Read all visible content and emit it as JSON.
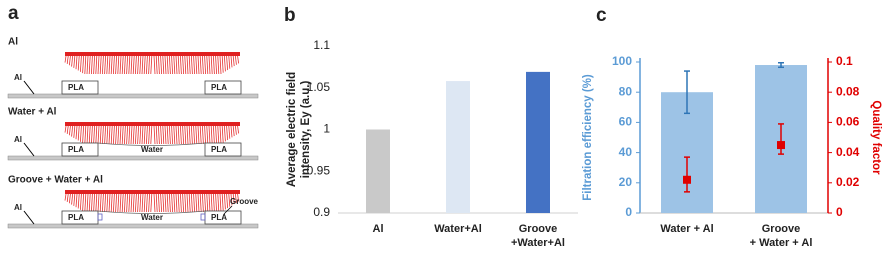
{
  "panel_labels": [
    "a",
    "b",
    "c"
  ],
  "diagram": {
    "rows": [
      {
        "title": "Al",
        "pointer": "Al",
        "pla": [
          "PLA",
          "PLA"
        ]
      },
      {
        "title": "Water + Al",
        "pointer": "Al",
        "pla": [
          "PLA",
          "PLA"
        ],
        "medium": "Water"
      },
      {
        "title": "Groove + Water + Al",
        "pointer": "Al",
        "pla": [
          "PLA",
          "PLA"
        ],
        "medium": "Water",
        "groove": "Groove"
      }
    ]
  },
  "chart_data": [
    {
      "type": "bar",
      "ylabel": [
        "Average electric field",
        "intensity, Ey (a.u.)"
      ],
      "categories": [
        [
          "Al"
        ],
        [
          "Water+Al"
        ],
        [
          "Groove",
          "+Water+Al"
        ]
      ],
      "values": [
        1,
        1.058,
        1.069
      ],
      "colors": [
        "#c9c9c9",
        "#dde7f3",
        "#4472c4"
      ],
      "ylim": [
        0.9,
        1.1
      ],
      "yticks": [
        0.9,
        0.95,
        1,
        1.05,
        1.1
      ]
    },
    {
      "type": "bar",
      "ylabel": [
        "Filtration efficiency (%)"
      ],
      "ylabel_color": "#5b9bd5",
      "y2label": "Quality factor",
      "y2label_color": "#e00000",
      "categories": [
        [
          "Water + Al"
        ],
        [
          "Groove",
          "+ Water + Al"
        ]
      ],
      "ylim": [
        0,
        100
      ],
      "yticks": [
        0,
        20,
        40,
        60,
        80,
        100
      ],
      "y2lim": [
        0,
        0.1
      ],
      "y2ticks": [
        0,
        0.02,
        0.04,
        0.06,
        0.08,
        0.1
      ],
      "series": [
        {
          "type": "bar",
          "values": [
            80,
            98
          ],
          "errors": [
            14,
            1.5
          ],
          "color": "#9dc3e6",
          "error_color": "#2e75b6"
        },
        {
          "type": "scatter",
          "axis": "y2",
          "values": [
            0.022,
            0.045
          ],
          "errors_low": [
            0.008,
            0.006
          ],
          "errors_high": [
            0.015,
            0.014
          ],
          "color": "#e00000"
        }
      ]
    }
  ]
}
